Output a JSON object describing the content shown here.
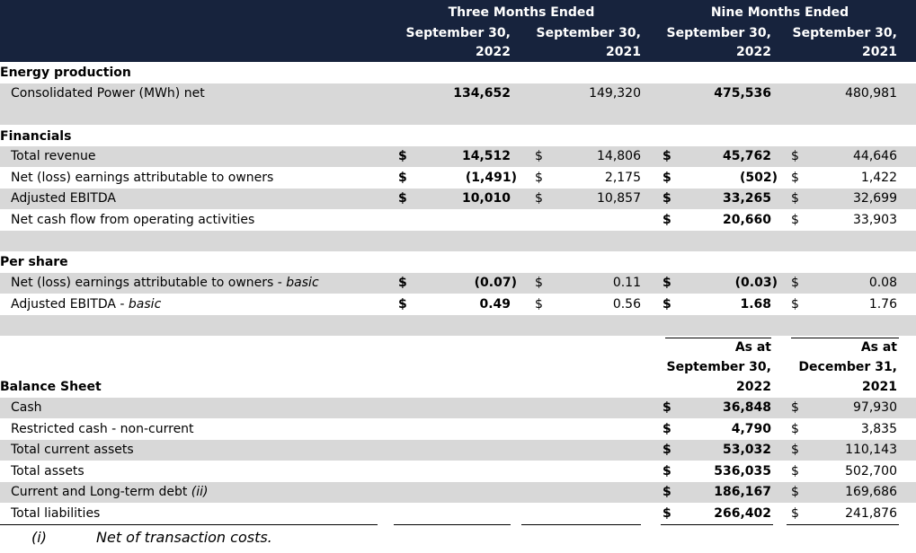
{
  "header": {
    "three_months": "Three Months Ended",
    "nine_months": "Nine Months Ended",
    "col1": [
      "September 30,",
      "2022"
    ],
    "col2": [
      "September 30,",
      "2021"
    ],
    "col3": [
      "September 30,",
      "2022"
    ],
    "col4": [
      "September 30,",
      "2021"
    ]
  },
  "sections": {
    "energy": "Energy production",
    "financials": "Financials",
    "per_share": "Per share",
    "balance": "Balance Sheet"
  },
  "currency": "$",
  "energy_rows": [
    {
      "label": "Consolidated Power (MWh) net",
      "v1": "134,652",
      "v2": "149,320",
      "v3": "475,536",
      "v4": "480,981"
    }
  ],
  "financial_rows": [
    {
      "label": "Total revenue",
      "v1": "14,512",
      "v2": "14,806",
      "v3": "45,762",
      "v4": "44,646"
    },
    {
      "label": "Net (loss) earnings attributable to owners",
      "v1": "(1,491)",
      "v2": "2,175",
      "v3": "(502)",
      "v4": "1,422"
    },
    {
      "label": "Adjusted EBITDA",
      "v1": "10,010",
      "v2": "10,857",
      "v3": "33,265",
      "v4": "32,699"
    },
    {
      "label": "Net cash flow from operating activities",
      "v1": "",
      "v2": "",
      "v3": "20,660",
      "v4": "33,903"
    }
  ],
  "per_share_rows": [
    {
      "label": "Net (loss) earnings attributable to owners - ",
      "label_italic": "basic",
      "v1": "(0.07)",
      "v2": "0.11",
      "v3": "(0.03)",
      "v4": "0.08"
    },
    {
      "label": "Adjusted EBITDA - ",
      "label_italic": "basic",
      "v1": "0.49",
      "v2": "0.56",
      "v3": "1.68",
      "v4": "1.76"
    }
  ],
  "balance_header": {
    "col3": [
      "As at",
      "September 30,",
      "2022"
    ],
    "col4": [
      "As at",
      "December 31,",
      "2021"
    ]
  },
  "balance_rows": [
    {
      "label": "Cash",
      "label_italic": "",
      "v3": "36,848",
      "v4": "97,930"
    },
    {
      "label": "Restricted cash - non-current",
      "label_italic": "",
      "v3": "4,790",
      "v4": "3,835"
    },
    {
      "label": "Total current assets",
      "label_italic": "",
      "v3": "53,032",
      "v4": "110,143"
    },
    {
      "label": "Total assets",
      "label_italic": "",
      "v3": "536,035",
      "v4": "502,700"
    },
    {
      "label": "Current and Long-term debt ",
      "label_italic": "(ii)",
      "v3": "186,167",
      "v4": "169,686"
    },
    {
      "label": "Total liabilities",
      "label_italic": "",
      "v3": "266,402",
      "v4": "241,876"
    }
  ],
  "footnote": {
    "marker": "(i)",
    "text": "Net of transaction costs."
  },
  "colors": {
    "header_bg": "#17233d",
    "band": "#d8d8d8"
  }
}
